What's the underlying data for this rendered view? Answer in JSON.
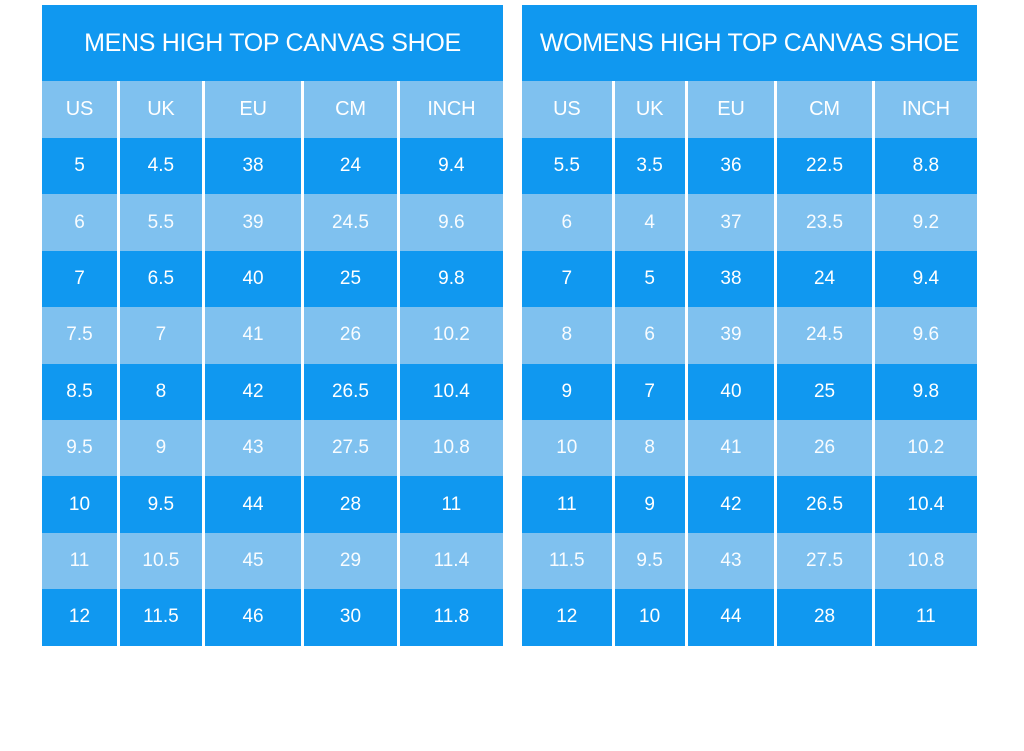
{
  "colors": {
    "bright_blue": "#1098F0",
    "light_blue": "#7FC1EF",
    "text": "#FFFFFF",
    "page_background": "#FFFFFF"
  },
  "chart_data": [
    {
      "type": "table",
      "title": "MENS HIGH TOP CANVAS SHOE",
      "columns": [
        "US",
        "UK",
        "EU",
        "CM",
        "INCH"
      ],
      "rows": [
        [
          "5",
          "4.5",
          "38",
          "24",
          "9.4"
        ],
        [
          "6",
          "5.5",
          "39",
          "24.5",
          "9.6"
        ],
        [
          "7",
          "6.5",
          "40",
          "25",
          "9.8"
        ],
        [
          "7.5",
          "7",
          "41",
          "26",
          "10.2"
        ],
        [
          "8.5",
          "8",
          "42",
          "26.5",
          "10.4"
        ],
        [
          "9.5",
          "9",
          "43",
          "27.5",
          "10.8"
        ],
        [
          "10",
          "9.5",
          "44",
          "28",
          "11"
        ],
        [
          "11",
          "10.5",
          "45",
          "29",
          "11.4"
        ],
        [
          "12",
          "11.5",
          "46",
          "30",
          "11.8"
        ]
      ],
      "layout_hints": {
        "row_striping": "alternating bright/light starting bright",
        "header_row_color": "light_blue",
        "title_bar_color": "bright_blue"
      }
    },
    {
      "type": "table",
      "title": "WOMENS HIGH TOP CANVAS SHOE",
      "columns": [
        "US",
        "UK",
        "EU",
        "CM",
        "INCH"
      ],
      "rows": [
        [
          "5.5",
          "3.5",
          "36",
          "22.5",
          "8.8"
        ],
        [
          "6",
          "4",
          "37",
          "23.5",
          "9.2"
        ],
        [
          "7",
          "5",
          "38",
          "24",
          "9.4"
        ],
        [
          "8",
          "6",
          "39",
          "24.5",
          "9.6"
        ],
        [
          "9",
          "7",
          "40",
          "25",
          "9.8"
        ],
        [
          "10",
          "8",
          "41",
          "26",
          "10.2"
        ],
        [
          "11",
          "9",
          "42",
          "26.5",
          "10.4"
        ],
        [
          "11.5",
          "9.5",
          "43",
          "27.5",
          "10.8"
        ],
        [
          "12",
          "10",
          "44",
          "28",
          "11"
        ]
      ],
      "layout_hints": {
        "row_striping": "alternating bright/light starting bright",
        "header_row_color": "light_blue",
        "title_bar_color": "bright_blue"
      }
    }
  ]
}
